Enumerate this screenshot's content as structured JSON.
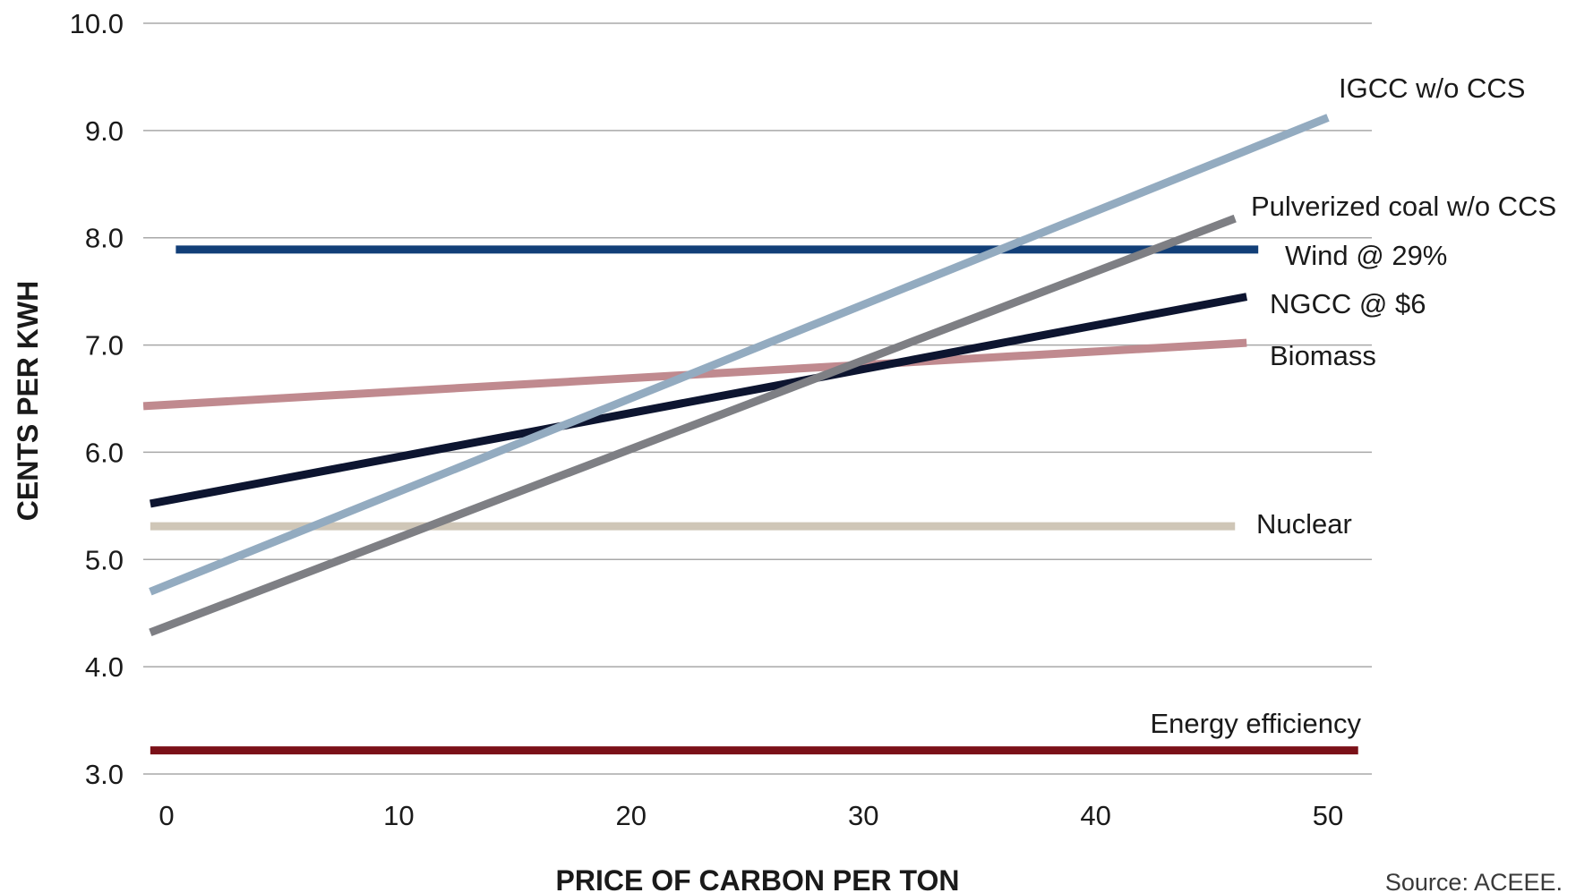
{
  "chart_data": {
    "type": "line",
    "title": "",
    "xlabel": "PRICE OF CARBON PER TON",
    "ylabel": "CENTS PER KWH",
    "xlim": [
      -1,
      52
    ],
    "ylim": [
      3.0,
      10.0
    ],
    "x_ticks": [
      "0",
      "10",
      "20",
      "30",
      "40",
      "50"
    ],
    "y_ticks": [
      "3.0",
      "4.0",
      "5.0",
      "6.0",
      "7.0",
      "8.0",
      "9.0",
      "10.0"
    ],
    "grid": true,
    "legend": "inline labels at line ends",
    "series": [
      {
        "name": "IGCC w/o CCS",
        "x": [
          -0.7,
          50.0
        ],
        "y": [
          4.7,
          9.12
        ],
        "color": "#93abc0"
      },
      {
        "name": "Pulverized coal w/o CCS",
        "x": [
          -0.7,
          46.0
        ],
        "y": [
          4.32,
          8.18
        ],
        "color": "#7e7f84"
      },
      {
        "name": "Wind @ 29%",
        "x": [
          0.4,
          47.0
        ],
        "y": [
          7.89,
          7.89
        ],
        "color": "#123f78"
      },
      {
        "name": "NGCC @ $6",
        "x": [
          -0.7,
          46.5
        ],
        "y": [
          5.52,
          7.45
        ],
        "color": "#0d1530"
      },
      {
        "name": "Biomass",
        "x": [
          -1.0,
          46.5
        ],
        "y": [
          6.43,
          7.02
        ],
        "color": "#c08a8f"
      },
      {
        "name": "Nuclear",
        "x": [
          -0.7,
          46.0
        ],
        "y": [
          5.31,
          5.31
        ],
        "color": "#cfc6b7"
      },
      {
        "name": "Energy efficiency",
        "x": [
          -0.7,
          51.3
        ],
        "y": [
          3.22,
          3.22
        ],
        "color": "#7b1118"
      }
    ],
    "source": "Source: ACEEE."
  }
}
